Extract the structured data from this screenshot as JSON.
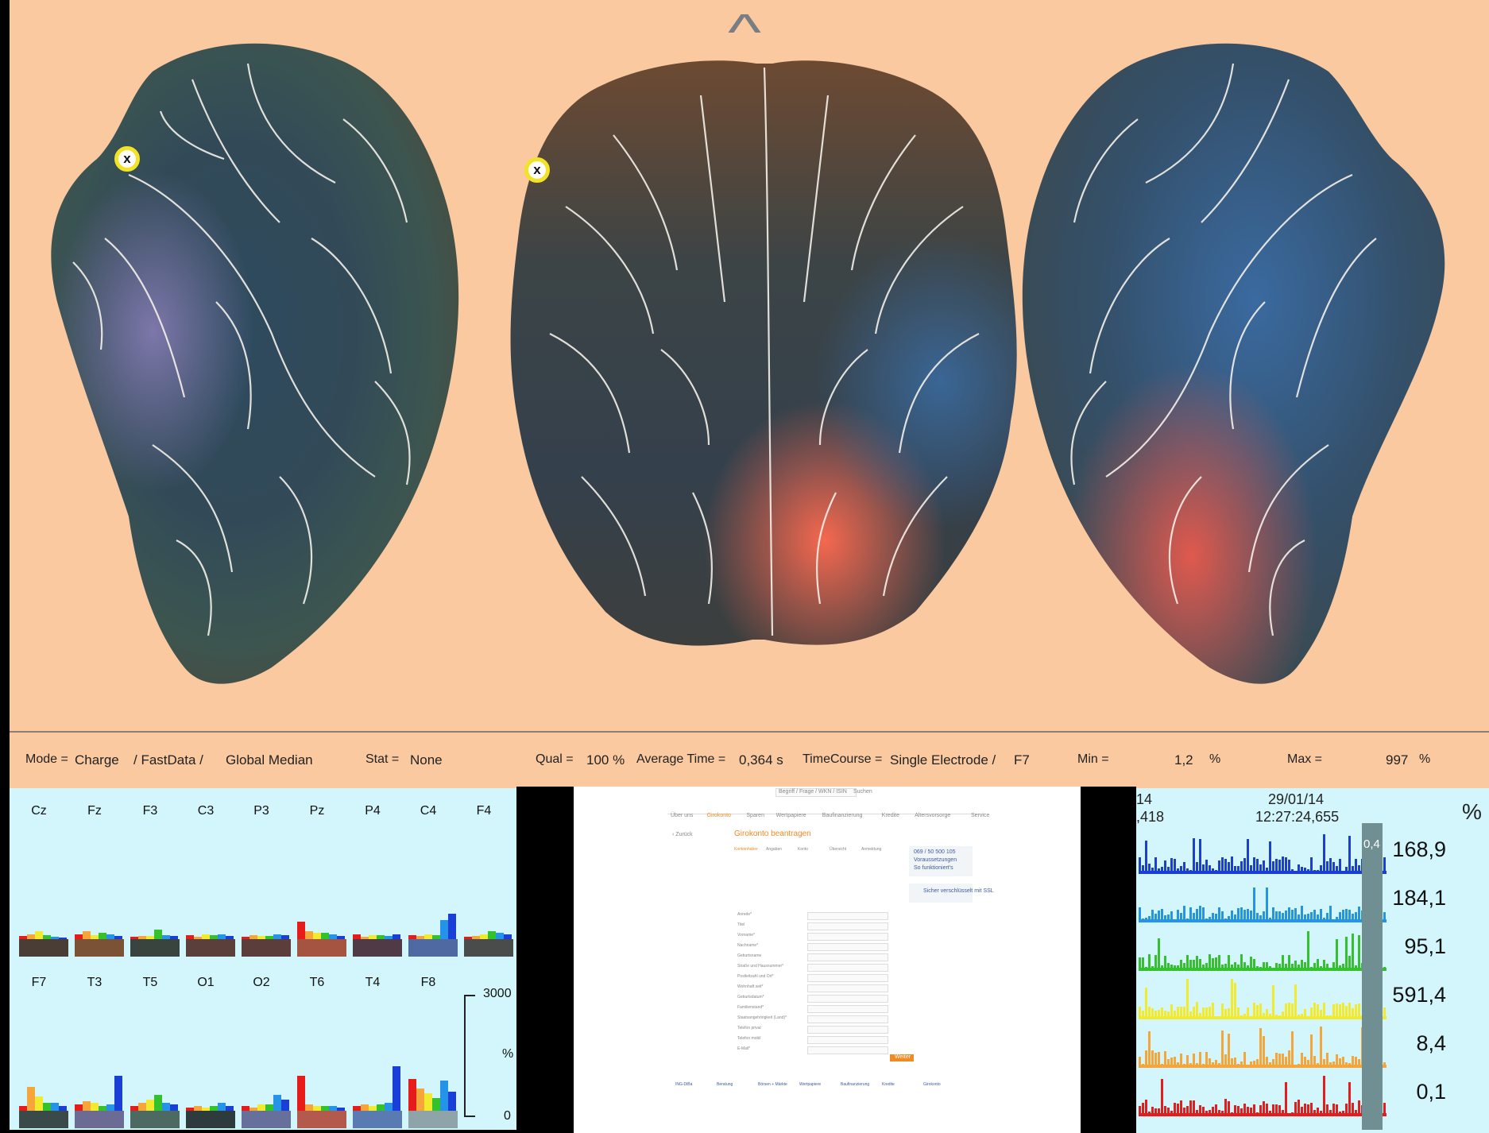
{
  "brain_view": {
    "markers": [
      "x",
      "x"
    ],
    "nav_caret": "^"
  },
  "status_bar": {
    "mode_label": "Mode =",
    "mode_value": "Charge",
    "data_value": "/ FastData /",
    "median_value": "Global Median",
    "stat_label": "Stat =",
    "stat_value": "None",
    "qual_label": "Qual =",
    "qual_value": "100 %",
    "avg_time_label": "Average Time =",
    "avg_time_value": "0,364 s",
    "timecourse_label": "TimeCourse =",
    "timecourse_value": "Single Electrode /",
    "electrode_value": "F7",
    "min_label": "Min =",
    "min_value": "1,2",
    "min_unit": "%",
    "max_label": "Max =",
    "max_value": "997",
    "max_unit": "%"
  },
  "electrode_panel": {
    "row1": [
      "Cz",
      "Fz",
      "F3",
      "C3",
      "P3",
      "Pz",
      "P4",
      "C4",
      "F4"
    ],
    "row2": [
      "F7",
      "T3",
      "T5",
      "O1",
      "O2",
      "T6",
      "T4",
      "F8"
    ],
    "scale_top": "3000",
    "scale_unit": "%",
    "scale_bottom": "0",
    "band_colors": [
      "#e81b1b",
      "#f5a53a",
      "#f2ea2e",
      "#33c22c",
      "#2594e8",
      "#1a3fd6"
    ],
    "row1_bands": [
      [
        4,
        6,
        10,
        5,
        3,
        2
      ],
      [
        6,
        10,
        5,
        8,
        6,
        4
      ],
      [
        3,
        4,
        4,
        12,
        5,
        4
      ],
      [
        5,
        3,
        6,
        5,
        6,
        4
      ],
      [
        3,
        5,
        4,
        4,
        6,
        5
      ],
      [
        22,
        10,
        8,
        8,
        6,
        4
      ],
      [
        6,
        3,
        5,
        5,
        4,
        6
      ],
      [
        5,
        4,
        6,
        5,
        24,
        32
      ],
      [
        3,
        4,
        6,
        10,
        8,
        6
      ]
    ],
    "row2_bands": [
      [
        6,
        30,
        18,
        10,
        10,
        6
      ],
      [
        8,
        12,
        10,
        6,
        8,
        44
      ],
      [
        6,
        10,
        14,
        20,
        10,
        8
      ],
      [
        4,
        6,
        4,
        6,
        10,
        6
      ],
      [
        6,
        4,
        8,
        8,
        20,
        14
      ],
      [
        44,
        8,
        6,
        6,
        6,
        4
      ],
      [
        6,
        8,
        6,
        8,
        10,
        56
      ],
      [
        40,
        28,
        22,
        16,
        38,
        24
      ]
    ],
    "swatch_colors_row1": [
      "#4a3d36",
      "#7b5236",
      "#3a443f",
      "#5b3f3a",
      "#5b3d3c",
      "#a45440",
      "#4f3a45",
      "#4f6aa2",
      "#494c4a"
    ],
    "swatch_colors_row2": [
      "#3a4a48",
      "#6c6b94",
      "#4d6a62",
      "#2d3b3c",
      "#66709a",
      "#b35a4c",
      "#5a7bb2",
      "#8ea4a8"
    ]
  },
  "browser": {
    "search_placeholder": "Begriff / Frage / WKN / ISIN",
    "search_button": "Suchen",
    "nav": [
      "Über uns",
      "Girokonto",
      "Sparen",
      "Wertpapiere",
      "Baufinanzierung",
      "Kredite",
      "Altersvorsorge",
      "Service"
    ],
    "back_link": "‹ Zurück",
    "heading": "Girokonto beantragen",
    "steps": [
      "Kontoinhaber",
      "Angaben",
      "Konto",
      "Übersicht",
      "Anmeldung"
    ],
    "fields": [
      "Anrede*",
      "Titel",
      "Vorname*",
      "Nachname*",
      "Geburtsname",
      "Straße und Hausnummer*",
      "Postleitzahl und Ort*",
      "Wohnhaft seit*",
      "Geburtsdatum*",
      "Familienstand*",
      "Staatsangehörigkeit (Land)*",
      "Telefon privat",
      "Telefon mobil",
      "E-Mail*"
    ],
    "next_button": "Weiter",
    "info_box": [
      "069 / 50 500 105",
      "Voraussetzungen",
      "So funktioniert's"
    ],
    "ssl_note": "Sicher verschlüsselt mit SSL",
    "footer_cols": [
      "ING-DiBa",
      "Beratung",
      "Börsen + Märkte",
      "Wertpapiere",
      "Baufinanzierung",
      "Kredite",
      "Girokonto"
    ]
  },
  "trace_panel": {
    "date_left": "14",
    "time_left": ",418",
    "date": "29/01/14",
    "time": "12:27:24,655",
    "unit": "%",
    "overlay_value": "0,4",
    "values": [
      "168,9",
      "184,1",
      "95,1",
      "591,4",
      "8,4",
      "0,1"
    ],
    "trace_colors": [
      "#1a3fd6",
      "#2594e8",
      "#33c22c",
      "#f2ea2e",
      "#f5a53a",
      "#e81b1b"
    ]
  }
}
